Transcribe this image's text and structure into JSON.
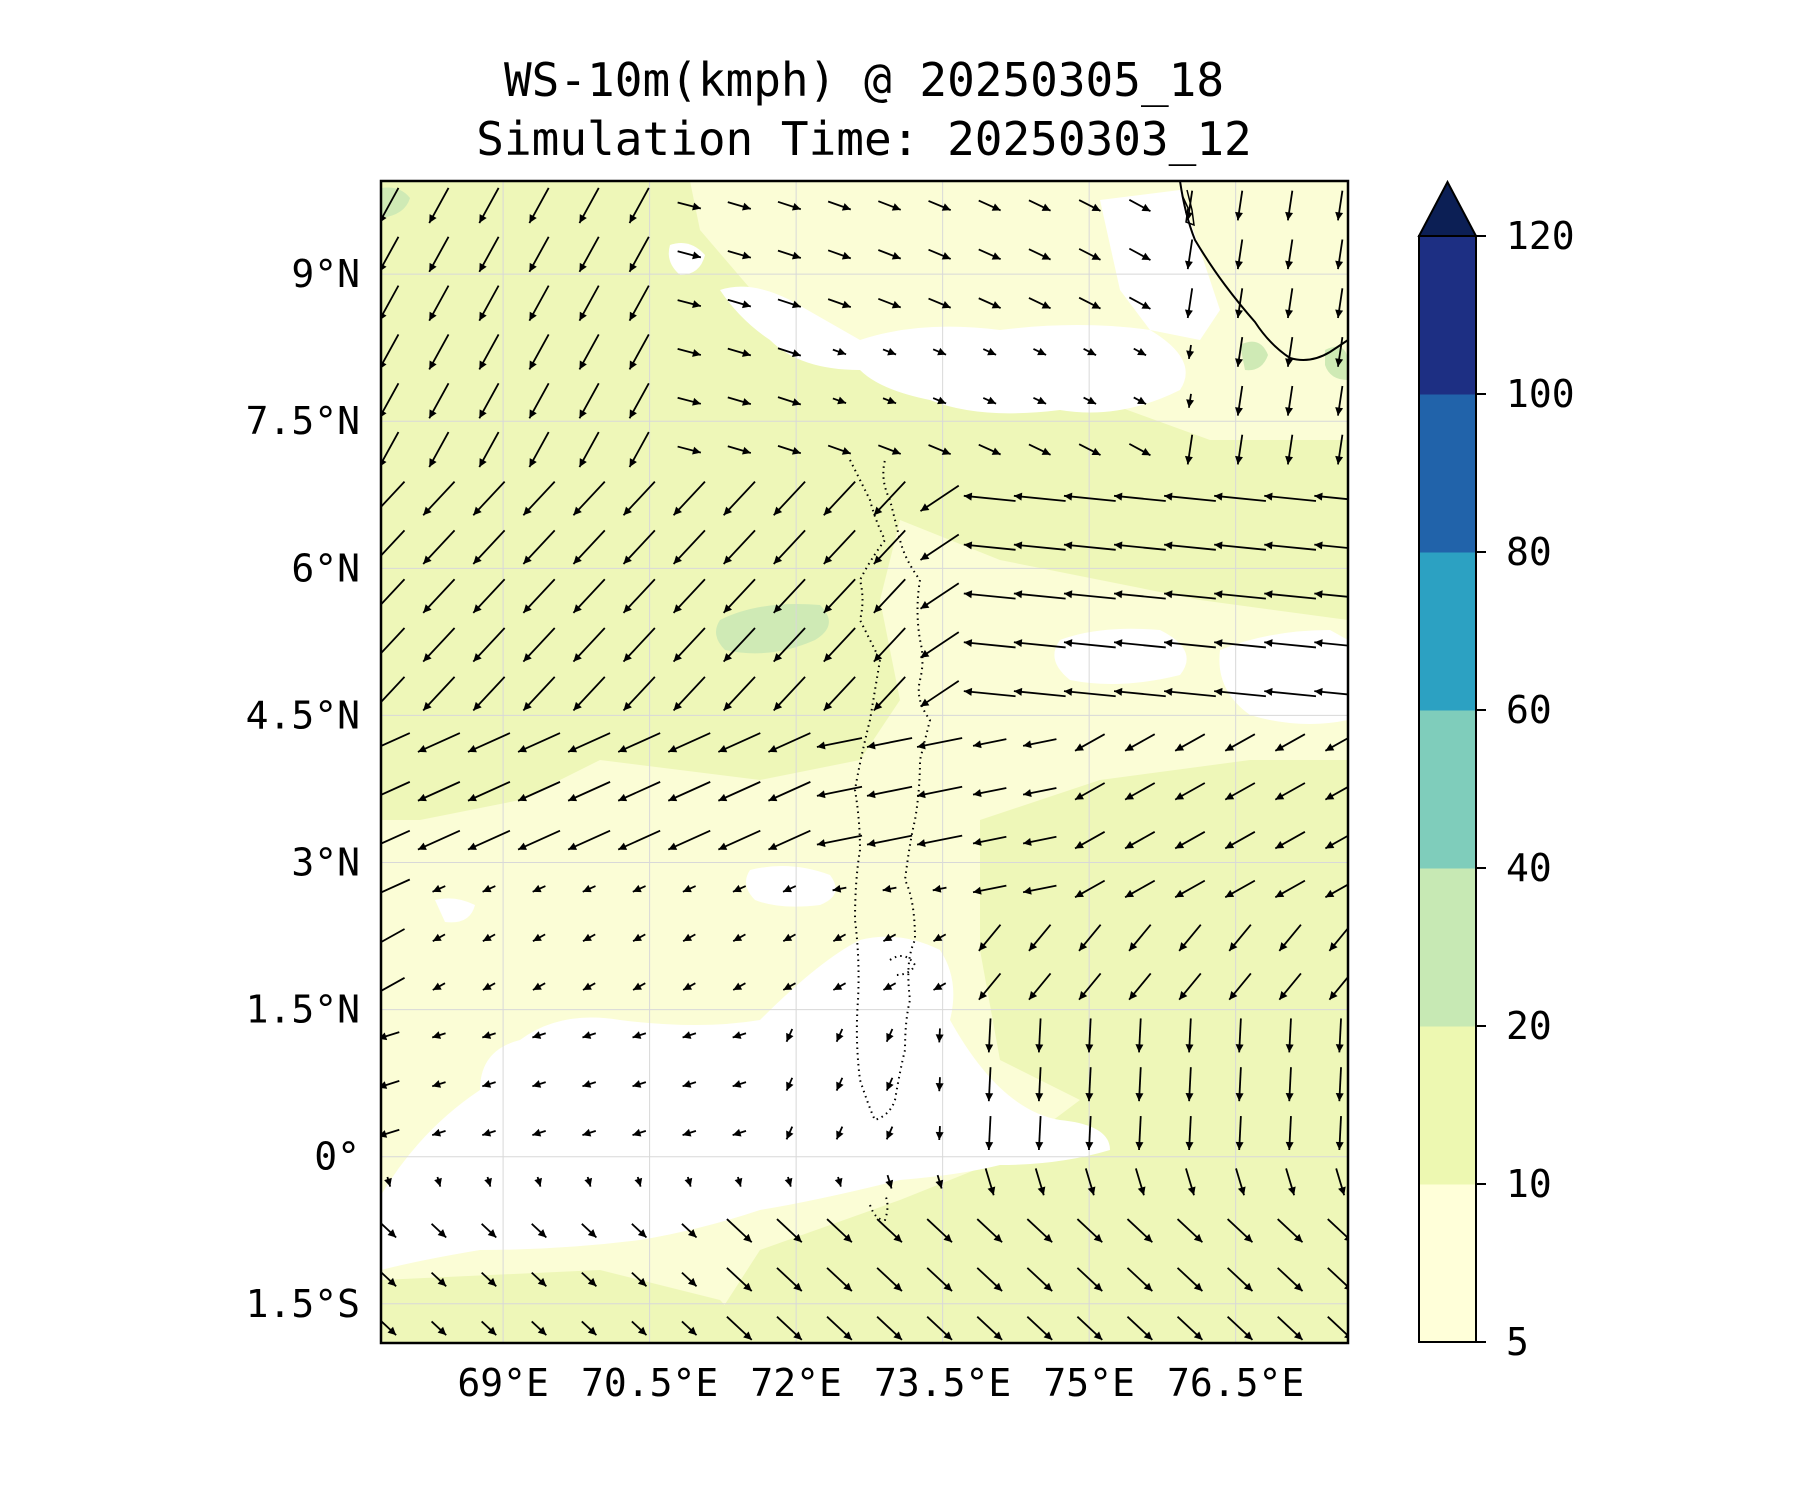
{
  "title_line1": "WS-10m(kmph) @ 20250305_18",
  "title_line2": "Simulation Time: 20250303_12",
  "map": {
    "lon_range": [
      67.75,
      77.65
    ],
    "lat_range": [
      -1.9,
      9.95
    ],
    "x_ticks": [
      {
        "lon": 69,
        "label": "69°E"
      },
      {
        "lon": 70.5,
        "label": "70.5°E"
      },
      {
        "lon": 72,
        "label": "72°E"
      },
      {
        "lon": 73.5,
        "label": "73.5°E"
      },
      {
        "lon": 75,
        "label": "75°E"
      },
      {
        "lon": 76.5,
        "label": "76.5°E"
      }
    ],
    "y_ticks": [
      {
        "lat": 9,
        "label": "9°N"
      },
      {
        "lat": 7.5,
        "label": "7.5°N"
      },
      {
        "lat": 6,
        "label": "6°N"
      },
      {
        "lat": 4.5,
        "label": "4.5°N"
      },
      {
        "lat": 3,
        "label": "3°N"
      },
      {
        "lat": 1.5,
        "label": "1.5°N"
      },
      {
        "lat": 0,
        "label": "0°"
      },
      {
        "lat": -1.5,
        "label": "1.5°S"
      }
    ],
    "gridlines": true
  },
  "colorbar": {
    "levels": [
      5,
      10,
      20,
      40,
      60,
      80,
      100,
      120
    ],
    "labels": [
      "5",
      "10",
      "20",
      "40",
      "60",
      "80",
      "100",
      "120"
    ],
    "colors": [
      "#ffffd9",
      "#edf8b1",
      "#c7e9b4",
      "#7fcdbb",
      "#2ca1c2",
      "#2163aa",
      "#1d2f83"
    ],
    "extend_color": "#0c1f55",
    "extend": "max"
  },
  "chart_data": {
    "type": "map-contour-quiver",
    "variable": "WS-10m(kmph)",
    "valid_time": "20250305_18",
    "simulation_time": "20250303_12",
    "wind_regimes": [
      {
        "region": "northwest",
        "lat_range": [
          7.5,
          9.9
        ],
        "lon_range": [
          67.9,
          72.5
        ],
        "direction": "northeasterly (toward SW)",
        "speed_kmph": 12
      },
      {
        "region": "north-central",
        "lat_range": [
          7.8,
          9.9
        ],
        "lon_range": [
          72.5,
          76.5
        ],
        "direction": "west-northwesterly to northerly",
        "speed_kmph": 8
      },
      {
        "region": "central-west",
        "lat_range": [
          4.5,
          7.5
        ],
        "lon_range": [
          67.9,
          73.5
        ],
        "direction": "northeasterly (toward SW)",
        "speed_kmph": 18
      },
      {
        "region": "east",
        "lat_range": [
          5.5,
          7.5
        ],
        "lon_range": [
          74.5,
          77.6
        ],
        "direction": "easterly (toward W)",
        "speed_kmph": 16
      },
      {
        "region": "southeast",
        "lat_range": [
          0.3,
          3.0
        ],
        "lon_range": [
          75.5,
          77.6
        ],
        "direction": "northeasterly to northerly",
        "speed_kmph": 14
      },
      {
        "region": "equatorial-west",
        "lat_range": [
          -1.0,
          1.2
        ],
        "lon_range": [
          67.9,
          73.0
        ],
        "direction": "variable/weak",
        "speed_kmph": 4
      },
      {
        "region": "south",
        "lat_range": [
          -1.9,
          -0.8
        ],
        "lon_range": [
          67.9,
          77.6
        ],
        "direction": "northwesterly (toward SE)",
        "speed_kmph": 10
      }
    ]
  }
}
